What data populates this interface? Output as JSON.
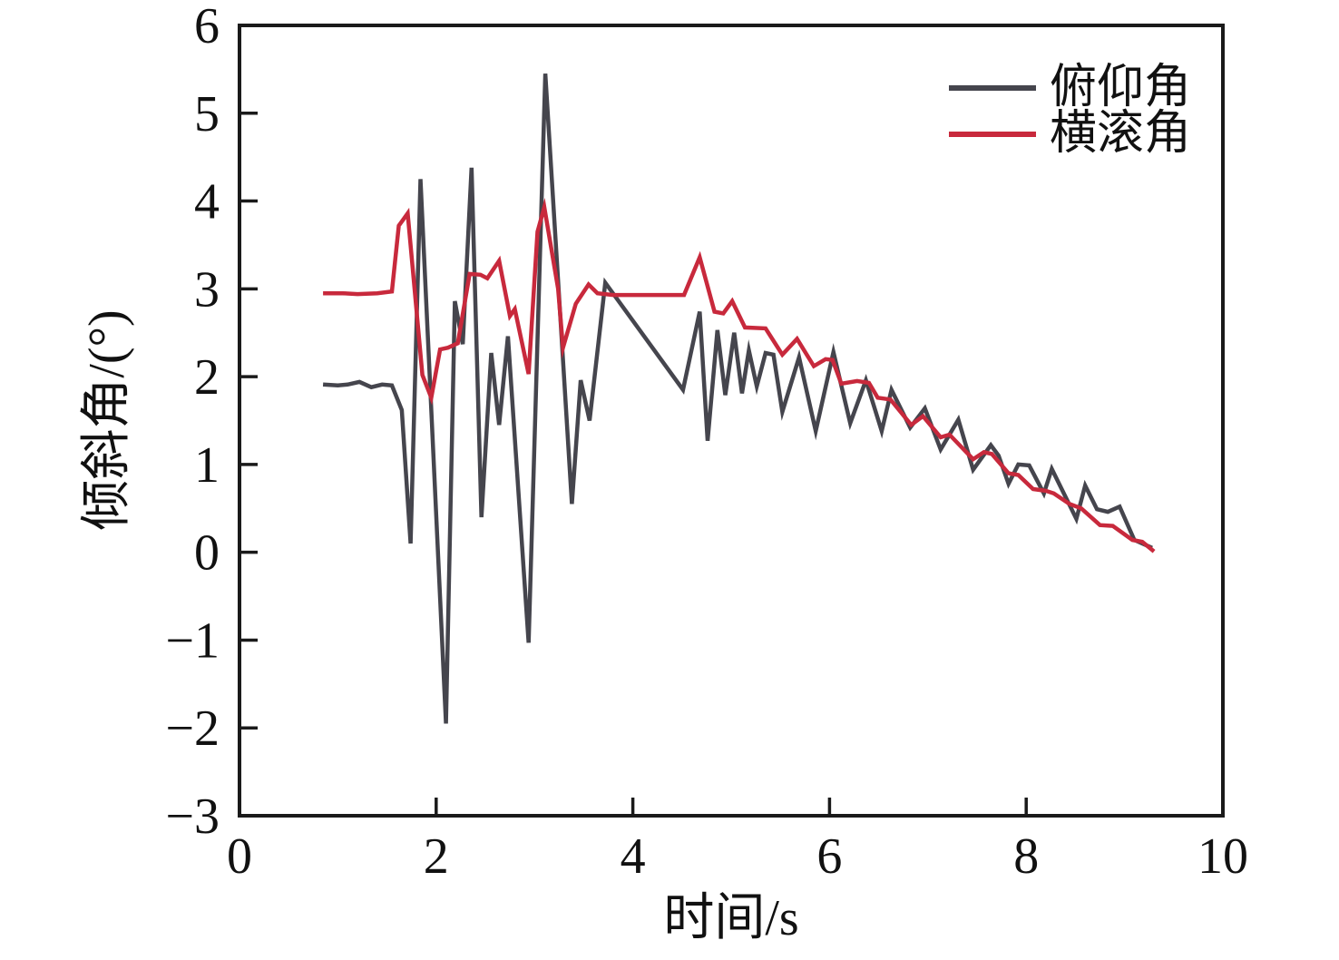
{
  "figure": {
    "background": "#ffffff",
    "axis_color": "#1a1a1a",
    "text_color": "#111111"
  },
  "chart_data": {
    "type": "line",
    "title": "",
    "xlabel": "时间/s",
    "ylabel": "倾斜角/(°)",
    "xlim": [
      0,
      10
    ],
    "ylim": [
      -3,
      6
    ],
    "xticks": [
      0,
      2,
      4,
      6,
      8,
      10
    ],
    "yticks": [
      6,
      5,
      4,
      3,
      2,
      1,
      0,
      -1,
      -2,
      -3
    ],
    "grid": false,
    "legend_position": "top-right-inside",
    "series": [
      {
        "name": "俯仰角",
        "color": "#45454d",
        "points": [
          [
            0.85,
            1.91
          ],
          [
            1.0,
            1.9
          ],
          [
            1.1,
            1.91
          ],
          [
            1.22,
            1.94
          ],
          [
            1.34,
            1.88
          ],
          [
            1.45,
            1.91
          ],
          [
            1.55,
            1.9
          ],
          [
            1.65,
            1.62
          ],
          [
            1.74,
            0.1
          ],
          [
            1.84,
            4.25
          ],
          [
            2.1,
            -1.95
          ],
          [
            2.19,
            2.86
          ],
          [
            2.27,
            2.37
          ],
          [
            2.36,
            4.38
          ],
          [
            2.46,
            0.4
          ],
          [
            2.56,
            2.27
          ],
          [
            2.64,
            1.45
          ],
          [
            2.73,
            2.46
          ],
          [
            2.94,
            -1.03
          ],
          [
            3.11,
            5.45
          ],
          [
            3.38,
            0.55
          ],
          [
            3.47,
            1.96
          ],
          [
            3.56,
            1.5
          ],
          [
            3.72,
            3.07
          ],
          [
            4.51,
            1.85
          ],
          [
            4.68,
            2.74
          ],
          [
            4.76,
            1.27
          ],
          [
            4.86,
            2.53
          ],
          [
            4.94,
            1.79
          ],
          [
            5.03,
            2.5
          ],
          [
            5.11,
            1.81
          ],
          [
            5.18,
            2.3
          ],
          [
            5.26,
            1.89
          ],
          [
            5.35,
            2.27
          ],
          [
            5.43,
            2.25
          ],
          [
            5.52,
            1.6
          ],
          [
            5.69,
            2.22
          ],
          [
            5.86,
            1.38
          ],
          [
            6.04,
            2.28
          ],
          [
            6.21,
            1.47
          ],
          [
            6.37,
            1.96
          ],
          [
            6.53,
            1.38
          ],
          [
            6.63,
            1.85
          ],
          [
            6.82,
            1.42
          ],
          [
            6.97,
            1.64
          ],
          [
            7.13,
            1.17
          ],
          [
            7.31,
            1.51
          ],
          [
            7.46,
            0.94
          ],
          [
            7.64,
            1.22
          ],
          [
            7.72,
            1.1
          ],
          [
            7.82,
            0.78
          ],
          [
            7.92,
            1.0
          ],
          [
            8.03,
            0.99
          ],
          [
            8.18,
            0.67
          ],
          [
            8.26,
            0.95
          ],
          [
            8.51,
            0.38
          ],
          [
            8.6,
            0.76
          ],
          [
            8.72,
            0.49
          ],
          [
            8.83,
            0.46
          ],
          [
            8.95,
            0.52
          ],
          [
            9.1,
            0.14
          ],
          [
            9.28,
            0.05
          ]
        ]
      },
      {
        "name": "横滚角",
        "color": "#c8293c",
        "points": [
          [
            0.85,
            2.95
          ],
          [
            1.05,
            2.95
          ],
          [
            1.2,
            2.94
          ],
          [
            1.4,
            2.95
          ],
          [
            1.55,
            2.97
          ],
          [
            1.62,
            3.72
          ],
          [
            1.66,
            3.78
          ],
          [
            1.71,
            3.86
          ],
          [
            1.86,
            2.02
          ],
          [
            1.95,
            1.76
          ],
          [
            2.04,
            2.31
          ],
          [
            2.12,
            2.33
          ],
          [
            2.22,
            2.38
          ],
          [
            2.34,
            3.17
          ],
          [
            2.45,
            3.16
          ],
          [
            2.52,
            3.12
          ],
          [
            2.64,
            3.32
          ],
          [
            2.75,
            2.69
          ],
          [
            2.8,
            2.77
          ],
          [
            2.94,
            2.03
          ],
          [
            3.03,
            3.65
          ],
          [
            3.1,
            3.93
          ],
          [
            3.24,
            3.0
          ],
          [
            3.29,
            2.33
          ],
          [
            3.42,
            2.83
          ],
          [
            3.55,
            3.05
          ],
          [
            3.64,
            2.95
          ],
          [
            3.8,
            2.93
          ],
          [
            4.52,
            2.93
          ],
          [
            4.68,
            3.36
          ],
          [
            4.83,
            2.74
          ],
          [
            4.92,
            2.72
          ],
          [
            5.01,
            2.86
          ],
          [
            5.14,
            2.56
          ],
          [
            5.35,
            2.55
          ],
          [
            5.52,
            2.25
          ],
          [
            5.67,
            2.43
          ],
          [
            5.84,
            2.12
          ],
          [
            5.96,
            2.2
          ],
          [
            6.03,
            2.19
          ],
          [
            6.12,
            1.92
          ],
          [
            6.28,
            1.95
          ],
          [
            6.4,
            1.93
          ],
          [
            6.49,
            1.76
          ],
          [
            6.62,
            1.74
          ],
          [
            6.73,
            1.59
          ],
          [
            6.83,
            1.45
          ],
          [
            6.95,
            1.55
          ],
          [
            7.13,
            1.31
          ],
          [
            7.22,
            1.34
          ],
          [
            7.46,
            1.06
          ],
          [
            7.57,
            1.14
          ],
          [
            7.65,
            1.12
          ],
          [
            7.82,
            0.9
          ],
          [
            7.92,
            0.88
          ],
          [
            8.07,
            0.72
          ],
          [
            8.2,
            0.7
          ],
          [
            8.28,
            0.67
          ],
          [
            8.44,
            0.55
          ],
          [
            8.56,
            0.5
          ],
          [
            8.75,
            0.31
          ],
          [
            8.88,
            0.3
          ],
          [
            9.08,
            0.14
          ],
          [
            9.18,
            0.12
          ],
          [
            9.3,
            0.01
          ]
        ]
      }
    ]
  }
}
